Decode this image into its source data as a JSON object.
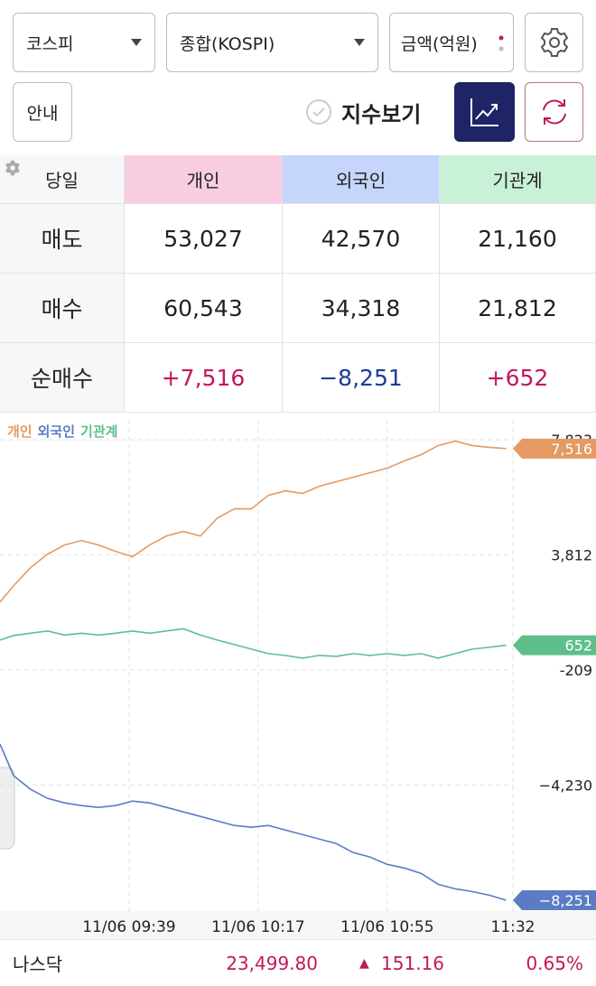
{
  "controls": {
    "market": "코스피",
    "index": "종합(KOSPI)",
    "unit": "금액(억원)",
    "guide": "안내",
    "show_index": "지수보기"
  },
  "table": {
    "header": [
      "당일",
      "개인",
      "외국인",
      "기관계"
    ],
    "rows": [
      [
        "매도",
        "53,027",
        "42,570",
        "21,160"
      ],
      [
        "매수",
        "60,543",
        "34,318",
        "21,812"
      ],
      [
        "순매수",
        "+7,516",
        "−8,251",
        "+652"
      ]
    ]
  },
  "chart_data": {
    "type": "line",
    "x": [
      "09:01",
      "09:05",
      "09:10",
      "09:15",
      "09:20",
      "09:25",
      "09:30",
      "09:35",
      "09:40",
      "09:45",
      "09:50",
      "09:55",
      "10:00",
      "10:05",
      "10:10",
      "10:15",
      "10:20",
      "10:25",
      "10:30",
      "10:35",
      "10:40",
      "10:45",
      "10:50",
      "10:55",
      "11:00",
      "11:05",
      "11:10",
      "11:15",
      "11:20",
      "11:25",
      "11:30"
    ],
    "xlim": [
      "09:01",
      "11:32"
    ],
    "xticks": [
      {
        "value": "09:39",
        "label": "11/06 09:39"
      },
      {
        "value": "10:17",
        "label": "11/06 10:17"
      },
      {
        "value": "10:55",
        "label": "11/06 10:55"
      },
      "11:32"
    ],
    "ylim": [
      -8660,
      8520
    ],
    "yticks": [
      {
        "value": 7823,
        "label": "7,823"
      },
      {
        "value": 3812,
        "label": "3,812"
      },
      {
        "value": -209,
        "label": "-209"
      },
      {
        "value": -4230,
        "label": "−4,230"
      }
    ],
    "grid": true,
    "series": [
      {
        "name": "개인",
        "color": "#e49a62",
        "values": [
          2160,
          2728,
          3360,
          3833,
          4149,
          4307,
          4149,
          3928,
          3739,
          4149,
          4465,
          4623,
          4465,
          5096,
          5412,
          5412,
          5886,
          6044,
          5949,
          6202,
          6360,
          6518,
          6676,
          6833,
          7086,
          7307,
          7623,
          7781,
          7623,
          7560,
          7516
        ],
        "value_labels": [
          null,
          null,
          null,
          null,
          null,
          null,
          null,
          null,
          null,
          null,
          null,
          null,
          null,
          null,
          null,
          null,
          null,
          null,
          null,
          null,
          null,
          null,
          null,
          null,
          null,
          null,
          null,
          null,
          null,
          null,
          "7,516"
        ]
      },
      {
        "name": "외국인",
        "color": "#5b7cc4",
        "values": [
          -2799,
          -3904,
          -4378,
          -4694,
          -4852,
          -4946,
          -5009,
          -4946,
          -4788,
          -4852,
          -5009,
          -5167,
          -5325,
          -5483,
          -5641,
          -5704,
          -5641,
          -5799,
          -5957,
          -6115,
          -6272,
          -6588,
          -6746,
          -6999,
          -7125,
          -7315,
          -7694,
          -7852,
          -7946,
          -8073,
          -8251
        ],
        "value_labels": [
          null,
          null,
          null,
          null,
          null,
          null,
          null,
          null,
          null,
          null,
          null,
          null,
          null,
          null,
          null,
          null,
          null,
          null,
          null,
          null,
          null,
          null,
          null,
          null,
          null,
          null,
          null,
          null,
          null,
          null,
          "−8,251"
        ]
      },
      {
        "name": "기관계",
        "color": "#5fbf8a",
        "values": [
          833,
          991,
          1070,
          1149,
          1007,
          1070,
          1007,
          1070,
          1149,
          1070,
          1149,
          1228,
          1007,
          833,
          675,
          517,
          359,
          296,
          201,
          296,
          264,
          359,
          296,
          359,
          296,
          359,
          201,
          359,
          517,
          580,
          652
        ],
        "value_labels": [
          null,
          null,
          null,
          null,
          null,
          null,
          null,
          null,
          null,
          null,
          null,
          null,
          null,
          null,
          null,
          null,
          null,
          null,
          null,
          null,
          null,
          null,
          null,
          null,
          null,
          null,
          null,
          null,
          null,
          null,
          "652"
        ]
      }
    ]
  },
  "ticker": {
    "name": "나스닥",
    "price": "23,499.80",
    "change": "151.16",
    "percent": "0.65%"
  }
}
